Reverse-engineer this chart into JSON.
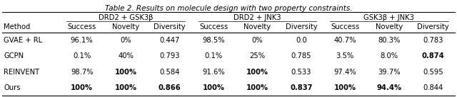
{
  "title": "Table 2. Results on molecule design with two property constraints.",
  "col_groups": [
    "DRD2 + GSK3β",
    "DRD2 + JNK3",
    "GSK3β + JNK3"
  ],
  "sub_cols": [
    "Success",
    "Novelty",
    "Diversity"
  ],
  "methods": [
    "GVAE + RL",
    "GCPN",
    "REINVENT",
    "Ours"
  ],
  "data": [
    [
      "96.1%",
      "0%",
      "0.447",
      "98.5%",
      "0%",
      "0.0",
      "40.7%",
      "80.3%",
      "0.783"
    ],
    [
      "0.1%",
      "40%",
      "0.793",
      "0.1%",
      "25%",
      "0.785",
      "3.5%",
      "8.0%",
      "0.874"
    ],
    [
      "98.7%",
      "100%",
      "0.584",
      "91.6%",
      "100%",
      "0.533",
      "97.4%",
      "39.7%",
      "0.595"
    ],
    [
      "100%",
      "100%",
      "0.866",
      "100%",
      "100%",
      "0.837",
      "100%",
      "94.4%",
      "0.844"
    ]
  ],
  "bold_cells": [
    [
      false,
      false,
      false,
      false,
      false,
      false,
      false,
      false,
      false
    ],
    [
      false,
      false,
      false,
      false,
      false,
      false,
      false,
      false,
      true
    ],
    [
      false,
      true,
      false,
      false,
      true,
      false,
      false,
      false,
      false
    ],
    [
      true,
      true,
      true,
      true,
      true,
      true,
      true,
      true,
      false
    ]
  ],
  "figsize": [
    6.4,
    1.37
  ],
  "dpi": 100,
  "font_size": 7.2,
  "title_font_size": 7.5
}
